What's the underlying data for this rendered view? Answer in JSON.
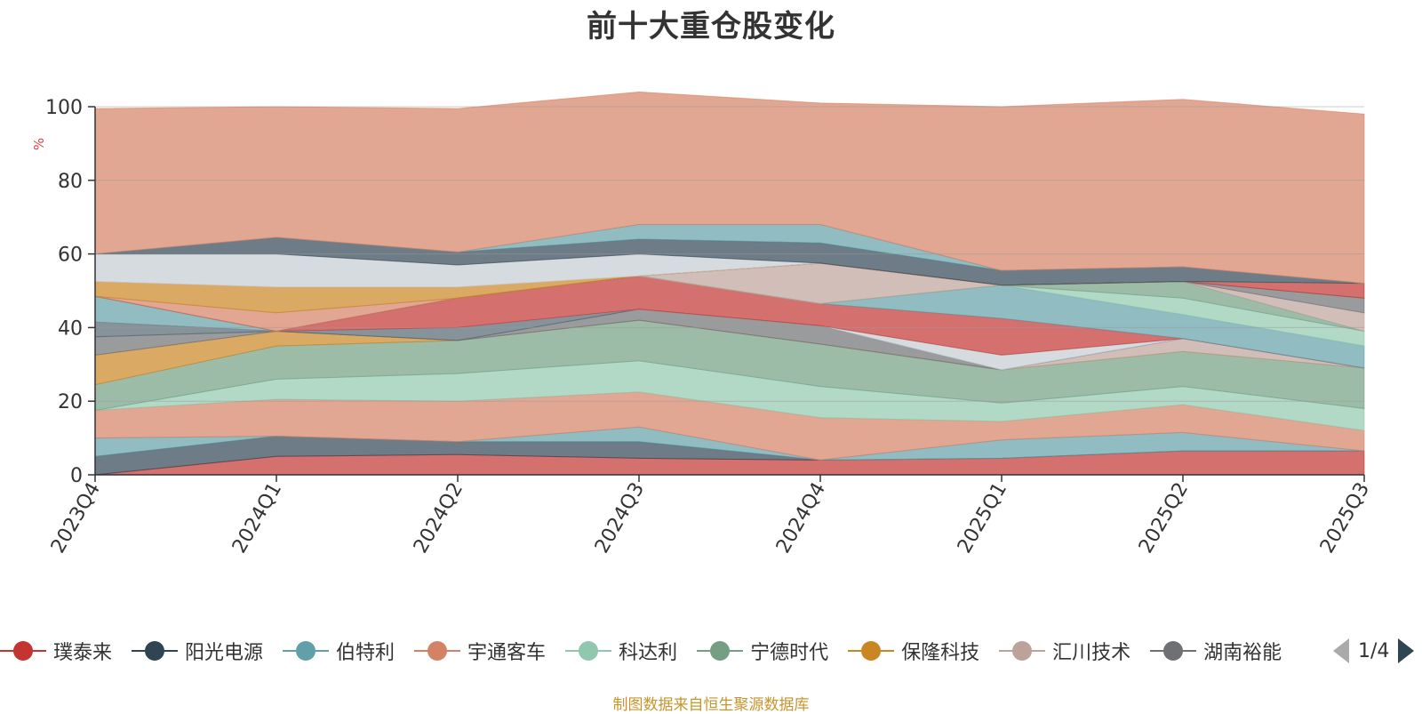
{
  "chart_data": {
    "type": "area",
    "title": "前十大重仓股变化",
    "ylabel": "%",
    "ylim": [
      0,
      100
    ],
    "yticks": [
      "0",
      "20",
      "40",
      "60",
      "80",
      "100"
    ],
    "categories": [
      "2023Q4",
      "2024Q1",
      "2024Q2",
      "2024Q3",
      "2024Q4",
      "2025Q1",
      "2025Q2",
      "2025Q3"
    ],
    "series": [
      {
        "name": "璞泰来",
        "color": "#c23531",
        "values": [
          0,
          5,
          5.5,
          4.5,
          4,
          4.5,
          6.5,
          6.5
        ]
      },
      {
        "name": "阳光电源",
        "color": "#2f4554",
        "values": [
          5,
          5.5,
          3.5,
          4.5,
          0,
          0,
          0,
          0
        ]
      },
      {
        "name": "伯特利",
        "color": "#61a0a8",
        "values": [
          5,
          0,
          0,
          4,
          0,
          5,
          5,
          0
        ]
      },
      {
        "name": "宇通客车",
        "color": "#d48265",
        "values": [
          7.5,
          10,
          11,
          9.5,
          11.5,
          5,
          7.5,
          5.5
        ]
      },
      {
        "name": "科达利",
        "color": "#91c7ae",
        "values": [
          0,
          5.5,
          7.5,
          8.5,
          8.5,
          5,
          5,
          6
        ]
      },
      {
        "name": "宁德时代",
        "color": "#749f83",
        "values": [
          7,
          9,
          9,
          11,
          11.5,
          9,
          9.5,
          11
        ]
      },
      {
        "name": "保隆科技",
        "color": "#ca8622",
        "values": [
          8,
          4,
          0,
          0,
          0,
          0,
          0,
          0
        ]
      },
      {
        "name": "汇川技术",
        "color": "#bda29a",
        "values": [
          0,
          0,
          0,
          0,
          0,
          0,
          3.5,
          0
        ]
      },
      {
        "name": "湖南裕能",
        "color": "#6e7074",
        "values": [
          5,
          0,
          0,
          3,
          5,
          0,
          0,
          0
        ]
      },
      {
        "name": "",
        "color": "#546570",
        "values": [
          4,
          0,
          3.5,
          0,
          0,
          0,
          0,
          0
        ]
      },
      {
        "name": "",
        "color": "#c4ccd3",
        "values": [
          0,
          0,
          0,
          0,
          0,
          4,
          0,
          0
        ]
      },
      {
        "name": "",
        "color": "#c23531",
        "values": [
          0,
          0,
          8,
          9,
          6,
          10,
          0,
          0
        ]
      },
      {
        "name": "",
        "color": "#61a0a8",
        "values": [
          7,
          0,
          0,
          0,
          0,
          9,
          6.5,
          6
        ]
      },
      {
        "name": "",
        "color": "#91c7ae",
        "values": [
          0,
          0,
          0,
          0,
          0,
          0,
          4.5,
          4
        ]
      },
      {
        "name": "",
        "color": "#749f83",
        "values": [
          0,
          0,
          0,
          0,
          0,
          0,
          4.5,
          0
        ]
      },
      {
        "name": "",
        "color": "#bda29a",
        "values": [
          0,
          0,
          0,
          0,
          11,
          0,
          0,
          5
        ]
      },
      {
        "name": "",
        "color": "#6e7074",
        "values": [
          0,
          0,
          0,
          0,
          0,
          0,
          0,
          4
        ]
      },
      {
        "name": "",
        "color": "#c23531",
        "values": [
          0,
          0,
          0,
          0,
          0,
          0,
          0,
          4
        ]
      },
      {
        "name": "",
        "color": "#d48265",
        "values": [
          0,
          5,
          0,
          0,
          0,
          0,
          0,
          0
        ]
      },
      {
        "name": "",
        "color": "#ca8622",
        "values": [
          4,
          7,
          3,
          0,
          0,
          0,
          0,
          0
        ]
      },
      {
        "name": "",
        "color": "#c4ccd3",
        "values": [
          7.5,
          9,
          6,
          6,
          0,
          0,
          0,
          0
        ]
      },
      {
        "name": "",
        "color": "#2f4554",
        "values": [
          0,
          4.5,
          3.5,
          4,
          5.5,
          4,
          4,
          0
        ]
      },
      {
        "name": "",
        "color": "#61a0a8",
        "values": [
          0,
          0,
          0,
          4,
          5,
          0,
          0,
          0
        ]
      },
      {
        "name": "",
        "color": "#d48265",
        "values": [
          39.5,
          35.5,
          39,
          36,
          33,
          44.5,
          45.5,
          46
        ]
      }
    ],
    "grid": true
  },
  "legend": {
    "items": [
      {
        "label": "璞泰来",
        "color": "#c23531"
      },
      {
        "label": "阳光电源",
        "color": "#2f4554"
      },
      {
        "label": "伯特利",
        "color": "#61a0a8"
      },
      {
        "label": "宇通客车",
        "color": "#d48265"
      },
      {
        "label": "科达利",
        "color": "#91c7ae"
      },
      {
        "label": "宁德时代",
        "color": "#749f83"
      },
      {
        "label": "保隆科技",
        "color": "#ca8622"
      },
      {
        "label": "汇川技术",
        "color": "#bda29a"
      },
      {
        "label": "湖南裕能",
        "color": "#6e7074"
      }
    ],
    "page": "1/4"
  },
  "source": "制图数据来自恒生聚源数据库"
}
